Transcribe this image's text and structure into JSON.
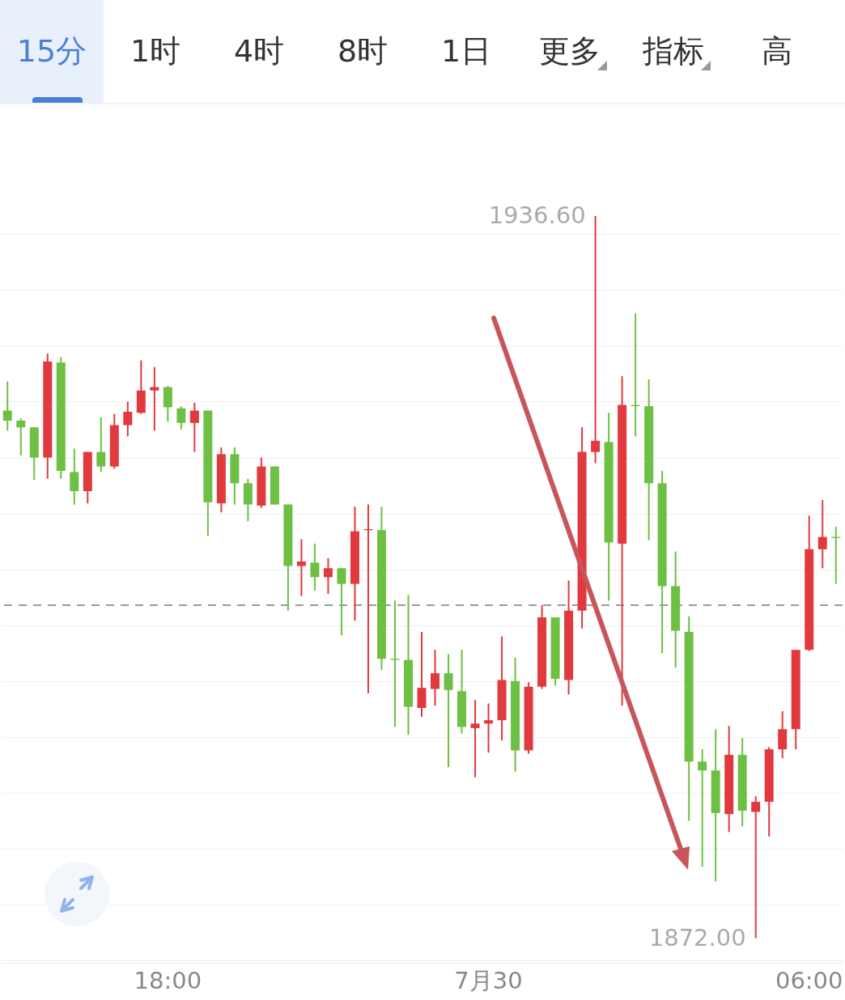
{
  "chart_data": {
    "type": "candlestick",
    "categories": [
      null,
      null,
      null,
      null,
      null,
      null,
      null,
      null,
      null,
      null,
      null,
      null,
      "18:00",
      null,
      null,
      null,
      null,
      null,
      null,
      null,
      null,
      null,
      null,
      null,
      null,
      null,
      null,
      null,
      null,
      null,
      null,
      null,
      null,
      null,
      null,
      null,
      "7月30",
      null,
      null,
      null,
      null,
      null,
      null,
      null,
      null,
      null,
      null,
      null,
      null,
      null,
      null,
      null,
      null,
      null,
      null,
      null,
      null,
      null,
      null,
      null,
      "06:00",
      null,
      null
    ],
    "ohlc": [
      [
        1919.2,
        1921.8,
        1917.4,
        1918.3
      ],
      [
        1918.3,
        1918.5,
        1915.2,
        1917.7
      ],
      [
        1917.7,
        1917.7,
        1913.0,
        1915.0
      ],
      [
        1915.0,
        1924.3,
        1913.1,
        1923.6
      ],
      [
        1923.5,
        1924.0,
        1913.1,
        1913.8
      ],
      [
        1913.7,
        1915.8,
        1910.8,
        1912.0
      ],
      [
        1912.0,
        1915.5,
        1910.9,
        1915.5
      ],
      [
        1915.5,
        1918.6,
        1913.7,
        1914.2
      ],
      [
        1914.2,
        1918.9,
        1914.0,
        1917.9
      ],
      [
        1917.9,
        1920.0,
        1916.9,
        1919.1
      ],
      [
        1919.0,
        1923.7,
        1918.9,
        1921.0
      ],
      [
        1921.0,
        1923.1,
        1917.4,
        1921.3
      ],
      [
        1921.3,
        1921.4,
        1918.2,
        1919.5
      ],
      [
        1919.4,
        1919.6,
        1917.5,
        1918.1
      ],
      [
        1918.1,
        1919.9,
        1915.5,
        1919.2
      ],
      [
        1919.2,
        1919.2,
        1908.0,
        1911.0
      ],
      [
        1910.9,
        1915.9,
        1910.1,
        1915.3
      ],
      [
        1915.3,
        1915.9,
        1910.8,
        1912.7
      ],
      [
        1912.7,
        1913.1,
        1909.3,
        1910.8
      ],
      [
        1910.7,
        1915.0,
        1910.5,
        1914.2
      ],
      [
        1914.2,
        1914.2,
        1910.8,
        1910.8
      ],
      [
        1910.8,
        1910.8,
        1901.3,
        1905.3
      ],
      [
        1905.3,
        1907.7,
        1902.6,
        1905.7
      ],
      [
        1905.6,
        1907.3,
        1903.1,
        1904.3
      ],
      [
        1904.3,
        1906.0,
        1902.8,
        1905.1
      ],
      [
        1905.1,
        1905.1,
        1899.1,
        1903.7
      ],
      [
        1903.7,
        1910.6,
        1900.4,
        1908.4
      ],
      [
        1908.5,
        1910.8,
        1893.9,
        1908.6
      ],
      [
        1908.5,
        1910.6,
        1896.0,
        1897.0
      ],
      [
        1897.0,
        1902.2,
        1890.9,
        1896.9
      ],
      [
        1896.9,
        1902.7,
        1890.2,
        1892.7
      ],
      [
        1892.6,
        1899.4,
        1891.8,
        1894.4
      ],
      [
        1894.3,
        1897.8,
        1892.8,
        1895.7
      ],
      [
        1895.7,
        1897.4,
        1887.3,
        1894.2
      ],
      [
        1894.1,
        1897.8,
        1890.3,
        1890.9
      ],
      [
        1890.8,
        1893.3,
        1886.4,
        1891.2
      ],
      [
        1891.2,
        1893.0,
        1888.6,
        1891.5
      ],
      [
        1891.5,
        1899.0,
        1889.7,
        1895.1
      ],
      [
        1895.0,
        1897.1,
        1886.9,
        1888.8
      ],
      [
        1888.8,
        1894.9,
        1888.5,
        1894.5
      ],
      [
        1894.5,
        1901.8,
        1894.3,
        1900.7
      ],
      [
        1900.7,
        1900.7,
        1894.6,
        1895.2
      ],
      [
        1895.1,
        1904.0,
        1893.8,
        1901.3
      ],
      [
        1901.3,
        1917.7,
        1899.7,
        1915.5
      ],
      [
        1915.5,
        1936.6,
        1914.5,
        1916.5
      ],
      [
        1916.4,
        1919.0,
        1902.2,
        1907.4
      ],
      [
        1907.3,
        1922.3,
        1892.8,
        1919.7
      ],
      [
        1919.7,
        1927.9,
        1916.9,
        1919.6
      ],
      [
        1919.6,
        1922.0,
        1907.6,
        1912.7
      ],
      [
        1912.7,
        1913.8,
        1897.5,
        1903.5
      ],
      [
        1903.5,
        1906.6,
        1896.2,
        1899.5
      ],
      [
        1899.4,
        1900.8,
        1882.5,
        1887.8
      ],
      [
        1887.8,
        1888.9,
        1878.4,
        1887.0
      ],
      [
        1887.0,
        1890.7,
        1877.1,
        1883.2
      ],
      [
        1883.1,
        1891.0,
        1881.5,
        1888.4
      ],
      [
        1888.4,
        1889.9,
        1882.0,
        1883.4
      ],
      [
        1883.3,
        1884.7,
        1872.0,
        1884.2
      ],
      [
        1884.2,
        1889.1,
        1881.1,
        1888.9
      ],
      [
        1888.9,
        1892.3,
        1888.1,
        1890.7
      ],
      [
        1890.7,
        1897.8,
        1888.9,
        1897.8
      ],
      [
        1897.8,
        1909.8,
        1897.7,
        1906.8
      ],
      [
        1906.8,
        1911.2,
        1905.1,
        1907.9
      ],
      [
        1907.9,
        1908.8,
        1903.7,
        1907.8
      ]
    ],
    "colors": [
      "#6dc043",
      "#6dc043",
      "#6dc043",
      "#e03a3e",
      "#6dc043",
      "#6dc043",
      "#e03a3e",
      "#6dc043",
      "#e03a3e",
      "#e03a3e",
      "#e03a3e",
      "#e03a3e",
      "#6dc043",
      "#6dc043",
      "#e03a3e",
      "#6dc043",
      "#e03a3e",
      "#6dc043",
      "#6dc043",
      "#e03a3e",
      "#6dc043",
      "#6dc043",
      "#e03a3e",
      "#6dc043",
      "#e03a3e",
      "#6dc043",
      "#e03a3e",
      "#e03a3e",
      "#6dc043",
      "#6dc043",
      "#6dc043",
      "#e03a3e",
      "#e03a3e",
      "#6dc043",
      "#6dc043",
      "#e03a3e",
      "#e03a3e",
      "#e03a3e",
      "#6dc043",
      "#e03a3e",
      "#e03a3e",
      "#6dc043",
      "#e03a3e",
      "#e03a3e",
      "#e03a3e",
      "#6dc043",
      "#e03a3e",
      "#6dc043",
      "#6dc043",
      "#6dc043",
      "#6dc043",
      "#6dc043",
      "#6dc043",
      "#6dc043",
      "#e03a3e",
      "#6dc043",
      "#e03a3e",
      "#e03a3e",
      "#e03a3e",
      "#e03a3e",
      "#e03a3e",
      "#e03a3e",
      "#6dc043"
    ],
    "ylim": [
      1869.8,
      1945.8
    ],
    "yticks": [
      {
        "value": 1870,
        "label": null
      },
      {
        "value": 1875,
        "label": null
      },
      {
        "value": 1880,
        "label": null
      },
      {
        "value": 1885,
        "label": null
      },
      {
        "value": 1890,
        "label": null
      },
      {
        "value": 1895,
        "label": null
      },
      {
        "value": 1900,
        "label": null
      },
      {
        "value": 1905,
        "label": null
      },
      {
        "value": 1910,
        "label": null
      },
      {
        "value": 1915,
        "label": null
      },
      {
        "value": 1920,
        "label": null
      },
      {
        "value": 1925,
        "label": null
      },
      {
        "value": 1930,
        "label": null
      },
      {
        "value": 1935,
        "label": null
      }
    ],
    "grid": "y",
    "tick_labels": "x",
    "ref_lines": [
      {
        "axis": "y",
        "value": 1901.8,
        "label": null,
        "color": "#999999",
        "line_style": "dashed"
      }
    ],
    "annotations": [
      "15分",
      "1时",
      "4时",
      "8时",
      "1日",
      "更多",
      "指标",
      "高",
      "1936.60",
      "1872.00"
    ]
  }
}
